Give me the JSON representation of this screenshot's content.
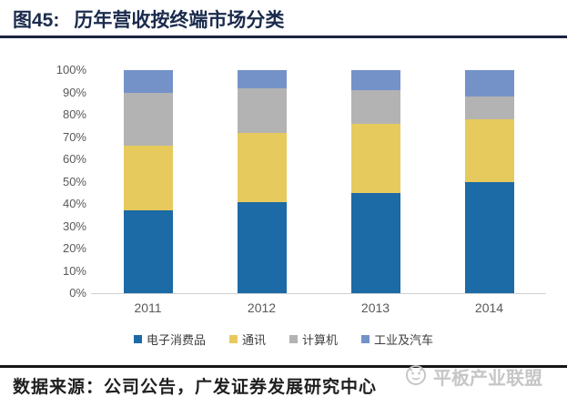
{
  "header": {
    "figure_label": "图45:",
    "title": "历年营收按终端市场分类"
  },
  "chart_data": {
    "type": "bar",
    "stacked": true,
    "percent": true,
    "title": "历年营收按终端市场分类",
    "categories": [
      "2011",
      "2012",
      "2013",
      "2014"
    ],
    "series": [
      {
        "name": "电子消费品",
        "color": "#1c6aa6",
        "values": [
          37,
          41,
          45,
          50
        ]
      },
      {
        "name": "通讯",
        "color": "#e7ca5d",
        "values": [
          29,
          31,
          31,
          28
        ]
      },
      {
        "name": "计算机",
        "color": "#b3b3b3",
        "values": [
          24,
          20,
          15,
          10
        ]
      },
      {
        "name": "工业及汽车",
        "color": "#7492c8",
        "values": [
          10,
          8,
          9,
          12
        ]
      }
    ],
    "y_ticks": [
      "100%",
      "90%",
      "80%",
      "70%",
      "60%",
      "50%",
      "40%",
      "30%",
      "20%",
      "10%",
      "0%"
    ],
    "ylim": [
      0,
      100
    ],
    "grid": false,
    "legend_position": "bottom"
  },
  "footer": {
    "source": "数据来源：公司公告，广发证券发展研究中心"
  },
  "watermark": {
    "text": "平板产业联盟"
  },
  "colors": {
    "title_navy": "#1b2b4d",
    "rule_top": "#1b2340",
    "rule_bottom": "#161616",
    "axis_text": "#595959",
    "baseline": "#d0d0d0",
    "watermark_gray": "#c3c3c3"
  }
}
